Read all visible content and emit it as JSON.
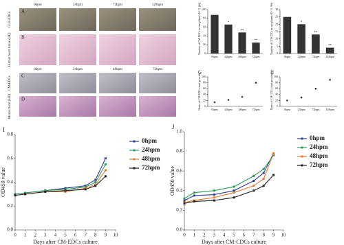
{
  "photo_panels": {
    "rows": [
      {
        "letter": "A",
        "label": "CLH-EDCs",
        "columns": [
          "0hpm",
          "24hpm",
          "72hpm",
          "120hpm"
        ]
      },
      {
        "letter": "B",
        "label": "Human heart tissue (HE)"
      },
      {
        "letter": "C",
        "label": "CM-EDCs",
        "columns": [
          "0hpm",
          "24hpm",
          "48hpm",
          "72hpm"
        ]
      },
      {
        "letter": "D",
        "label": "Mouse heart (HE)"
      }
    ]
  },
  "chart_data": [
    {
      "type": "bar",
      "panel": "E",
      "ylabel": "Number of CM-EDCs in one plane(×10⁻³)",
      "categories": [
        "0hpm",
        "24hpm",
        "48hpm",
        "72hpm"
      ],
      "values": [
        88,
        66,
        48,
        25
      ],
      "annotations": [
        null,
        "*",
        "**",
        "**"
      ],
      "color": "#333333",
      "ylim": [
        0,
        100
      ],
      "yticks": [
        0,
        20,
        40,
        60,
        80,
        100
      ]
    },
    {
      "type": "bar",
      "panel": "F",
      "ylabel": "Number of CH-CDCs in one plane(×10⁻³)",
      "categories": [
        "0hpm",
        "24hpm",
        "72hpm",
        "120hpm"
      ],
      "values": [
        25,
        20,
        13,
        4
      ],
      "annotations": [
        null,
        "*",
        "**",
        "**"
      ],
      "color": "#333333",
      "ylim": [
        0,
        30
      ],
      "yticks": [
        0,
        5,
        10,
        15,
        20,
        25,
        30
      ]
    },
    {
      "type": "scatter",
      "panel": "G",
      "ylabel": "Hours of CM-EDCs start growing",
      "categories": [
        "0hpm",
        "24hpm",
        "48hpm",
        "72hpm"
      ],
      "values": [
        14,
        22,
        32,
        80
      ],
      "color": "#333333",
      "ylim": [
        0,
        100
      ],
      "yticks": [
        0,
        20,
        40,
        60,
        80,
        100
      ]
    },
    {
      "type": "scatter",
      "panel": "H",
      "ylabel": "Hours of CH-CDCs start growing",
      "categories": [
        "0hpm",
        "24hpm",
        "72hpm",
        "120hpm"
      ],
      "values": [
        20,
        30,
        60,
        90
      ],
      "color": "#333333",
      "ylim": [
        0,
        100
      ],
      "yticks": [
        0,
        20,
        40,
        60,
        80,
        100
      ]
    },
    {
      "type": "line",
      "panel": "I",
      "ylabel": "OD450 value",
      "xlabel": "Days after CM-EDCs culture",
      "x": [
        0,
        1,
        3,
        5,
        7,
        8,
        9
      ],
      "series": [
        {
          "name": "0hpm",
          "color": "#2e3f8f",
          "values": [
            0.3,
            0.31,
            0.33,
            0.35,
            0.37,
            0.42,
            0.6
          ]
        },
        {
          "name": "24hpm",
          "color": "#2e9a5a",
          "values": [
            0.3,
            0.31,
            0.33,
            0.34,
            0.36,
            0.4,
            0.55
          ]
        },
        {
          "name": "48hpm",
          "color": "#e07b39",
          "values": [
            0.29,
            0.3,
            0.32,
            0.32,
            0.35,
            0.38,
            0.5
          ]
        },
        {
          "name": "72hpm",
          "color": "#222222",
          "values": [
            0.29,
            0.3,
            0.32,
            0.33,
            0.34,
            0.37,
            0.45
          ]
        }
      ],
      "xlim": [
        0,
        10
      ],
      "xticks": [
        0,
        1,
        2,
        3,
        4,
        5,
        6,
        7,
        8,
        9,
        10
      ],
      "ylim": [
        0,
        0.8
      ],
      "yticks": [
        {
          "value": 0,
          "label": "0.0"
        },
        0.2,
        0.4,
        0.6,
        0.8
      ]
    },
    {
      "type": "line",
      "panel": "J",
      "ylabel": "OD450 value",
      "xlabel": "Days after CM-CDCs culture",
      "x": [
        0,
        1,
        3,
        5,
        7,
        8,
        9
      ],
      "series": [
        {
          "name": "0hpm",
          "color": "#2e3f8f",
          "values": [
            0.3,
            0.35,
            0.36,
            0.4,
            0.5,
            0.58,
            0.78
          ]
        },
        {
          "name": "24hpm",
          "color": "#2e9a5a",
          "values": [
            0.32,
            0.38,
            0.4,
            0.44,
            0.55,
            0.62,
            0.76
          ]
        },
        {
          "name": "48hpm",
          "color": "#e07b39",
          "values": [
            0.28,
            0.3,
            0.33,
            0.38,
            0.45,
            0.52,
            0.78
          ]
        },
        {
          "name": "72hpm",
          "color": "#222222",
          "values": [
            0.27,
            0.29,
            0.3,
            0.33,
            0.4,
            0.45,
            0.56
          ]
        }
      ],
      "xlim": [
        0,
        10
      ],
      "xticks": [
        0,
        1,
        2,
        3,
        4,
        5,
        6,
        7,
        8,
        9,
        10
      ],
      "ylim": [
        0,
        1
      ],
      "yticks": [
        {
          "value": 0,
          "label": "0.0"
        },
        0.2,
        0.4,
        0.6,
        0.8,
        {
          "value": 1,
          "label": "1.0"
        }
      ]
    }
  ]
}
